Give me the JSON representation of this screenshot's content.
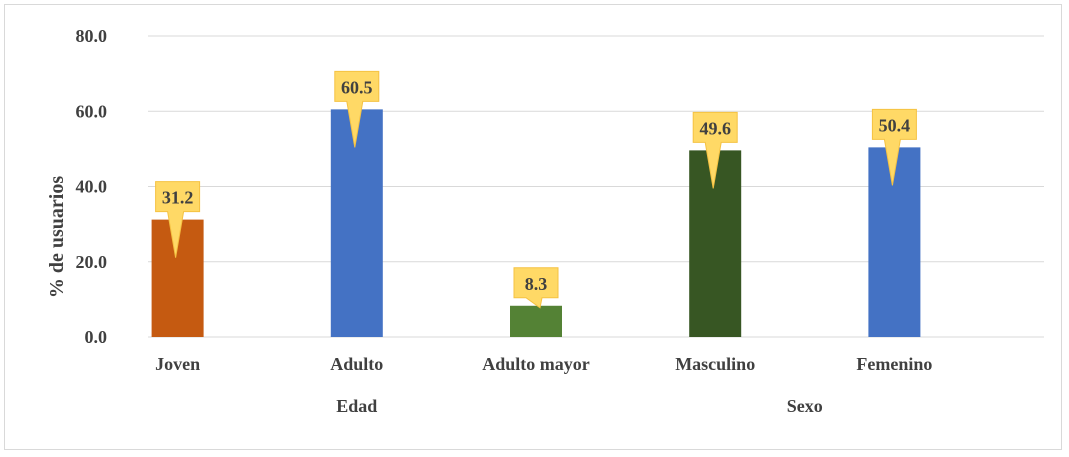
{
  "chart_data": {
    "type": "bar",
    "ylabel": "% de usuarios",
    "ylim": [
      0,
      80
    ],
    "yticks": [
      "0.0",
      "20.0",
      "40.0",
      "60.0",
      "80.0"
    ],
    "grid": true,
    "categories": [
      "Joven",
      "Adulto",
      "Adulto mayor",
      "Masculino",
      "Femenino"
    ],
    "groups": [
      {
        "label": "Edad",
        "categories": [
          "Joven",
          "Adulto",
          "Adulto mayor"
        ]
      },
      {
        "label": "Sexo",
        "categories": [
          "Masculino",
          "Femenino"
        ]
      }
    ],
    "values": [
      31.2,
      60.5,
      8.3,
      49.6,
      50.4
    ],
    "data_labels": [
      "31.2",
      "60.5",
      "8.3",
      "49.6",
      "50.4"
    ],
    "bar_colors": [
      "#c55a11",
      "#4472c4",
      "#548235",
      "#375623",
      "#4472c4"
    ],
    "callout_color": "#ffd966",
    "gridline_color": "#d9d9d9"
  }
}
